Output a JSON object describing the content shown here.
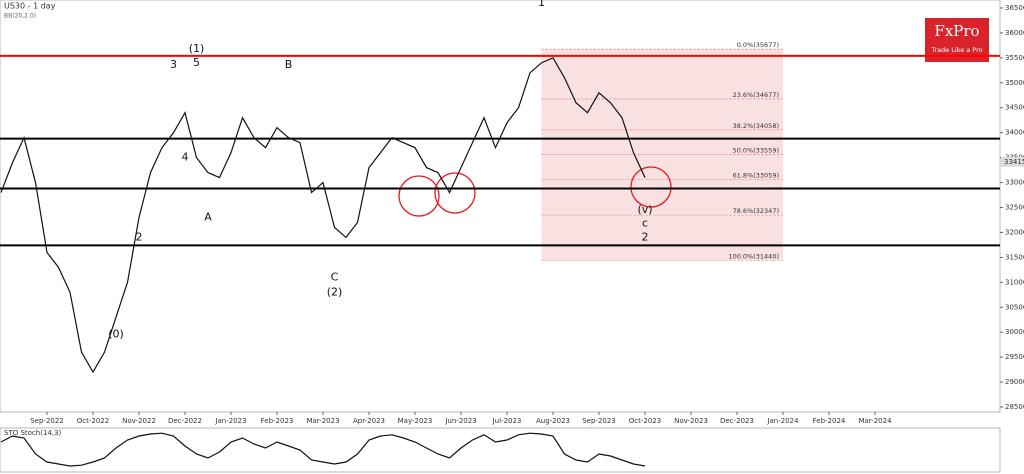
{
  "chart_data": {
    "type": "line",
    "title": "US30 - 1 day",
    "subtitle": "BB(20,2.0)",
    "logo": "FxPro",
    "logo_tagline": "Trade Like a Pro",
    "current_price": 33415,
    "categories": [
      null,
      null,
      null,
      null,
      "Sep-2022",
      null,
      null,
      null,
      "Oct-2022",
      null,
      null,
      null,
      "Nov-2022",
      null,
      null,
      null,
      "Dec-2022",
      null,
      null,
      null,
      "Jan-2023",
      null,
      null,
      null,
      "Feb-2023",
      null,
      null,
      null,
      "Mar-2023",
      null,
      null,
      null,
      "Apr-2023",
      null,
      null,
      null,
      "May-2023",
      null,
      null,
      null,
      "Jun-2023",
      null,
      null,
      null,
      "Jul-2023",
      null,
      null,
      null,
      "Aug-2023",
      null,
      null,
      null,
      "Sep-2023",
      null,
      null,
      null,
      "Oct-2023",
      null,
      null,
      null,
      "Nov-2023",
      null,
      null,
      null,
      "Dec-2023",
      null,
      null,
      null,
      "Jan-2024",
      null,
      null,
      null,
      "Feb-2024",
      null,
      null,
      null,
      "Mar-2024"
    ],
    "series": [
      {
        "name": "US30",
        "color": "#111111",
        "values": [
          32800,
          33400,
          33900,
          33000,
          31600,
          31300,
          30800,
          29600,
          29200,
          29600,
          30300,
          31000,
          32300,
          33200,
          33700,
          34000,
          34400,
          33500,
          33200,
          33100,
          33600,
          34300,
          33900,
          33700,
          34100,
          33900,
          33800,
          32800,
          33000,
          32100,
          31900,
          32200,
          33300,
          33600,
          33900,
          33800,
          33700,
          33300,
          33200,
          32800,
          33300,
          33800,
          34300,
          33700,
          34200,
          34500,
          35200,
          35400,
          35500,
          35100,
          34600,
          34400,
          34800,
          34600,
          34300,
          33600,
          33100,
          null,
          null,
          null,
          null,
          null,
          null,
          null,
          null,
          null,
          null,
          null,
          null,
          null,
          null,
          null,
          null,
          null,
          null,
          null,
          null
        ]
      }
    ],
    "ylim": [
      28400,
      36660
    ],
    "yticks": [
      28500,
      29000,
      29500,
      30000,
      30500,
      31000,
      31500,
      32000,
      32500,
      33000,
      33500,
      34000,
      34500,
      35000,
      35500,
      36000,
      36500
    ],
    "levels": [
      {
        "value": 35540,
        "color": "#ff0000"
      },
      {
        "value": 33880,
        "color": "#000000"
      },
      {
        "value": 32880,
        "color": "#000000"
      },
      {
        "value": 31740,
        "color": "#000000"
      }
    ],
    "fib_levels": [
      {
        "label": "0.0%(35677)",
        "value": 35677
      },
      {
        "label": "23.6%(34677)",
        "value": 34677
      },
      {
        "label": "38.2%(34058)",
        "value": 34058
      },
      {
        "label": "50.0%(33559)",
        "value": 33559
      },
      {
        "label": "61.8%(33059)",
        "value": 33059
      },
      {
        "label": "78.6%(32347)",
        "value": 32347
      },
      {
        "label": "100.0%(31440)",
        "value": 31440
      }
    ],
    "annotations": [
      {
        "text": "1",
        "x": 47,
        "y": 36600
      },
      {
        "text": "(1)",
        "x": 17,
        "y": 35680
      },
      {
        "text": "5",
        "x": 17,
        "y": 35400
      },
      {
        "text": "3",
        "x": 15,
        "y": 35360
      },
      {
        "text": "4",
        "x": 16,
        "y": 33500
      },
      {
        "text": "A",
        "x": 18,
        "y": 32300
      },
      {
        "text": "B",
        "x": 25,
        "y": 35360
      },
      {
        "text": "C",
        "x": 29,
        "y": 31100
      },
      {
        "text": "(2)",
        "x": 29,
        "y": 30800
      },
      {
        "text": "2",
        "x": 12,
        "y": 31900
      },
      {
        "text": "(0)",
        "x": 10,
        "y": 29950
      },
      {
        "text": "(v)",
        "x": 56,
        "y": 32450
      },
      {
        "text": "c",
        "x": 56,
        "y": 32180
      },
      {
        "text": "2",
        "x": 56,
        "y": 31900
      }
    ],
    "indicator": {
      "name": "STO Stoch(14,3)",
      "ylim": [
        0,
        100
      ],
      "color": "#111111",
      "values": [
        70,
        85,
        80,
        40,
        20,
        15,
        10,
        12,
        20,
        30,
        55,
        75,
        85,
        90,
        92,
        85,
        60,
        40,
        30,
        45,
        70,
        80,
        65,
        55,
        70,
        60,
        50,
        25,
        20,
        15,
        20,
        40,
        75,
        85,
        88,
        80,
        70,
        55,
        40,
        30,
        55,
        75,
        88,
        70,
        75,
        88,
        92,
        90,
        85,
        40,
        25,
        20,
        40,
        35,
        25,
        15,
        10,
        null,
        null,
        null,
        null,
        null,
        null,
        null,
        null,
        null,
        null,
        null,
        null,
        null,
        null,
        null,
        null,
        null,
        null,
        null,
        null
      ]
    }
  }
}
